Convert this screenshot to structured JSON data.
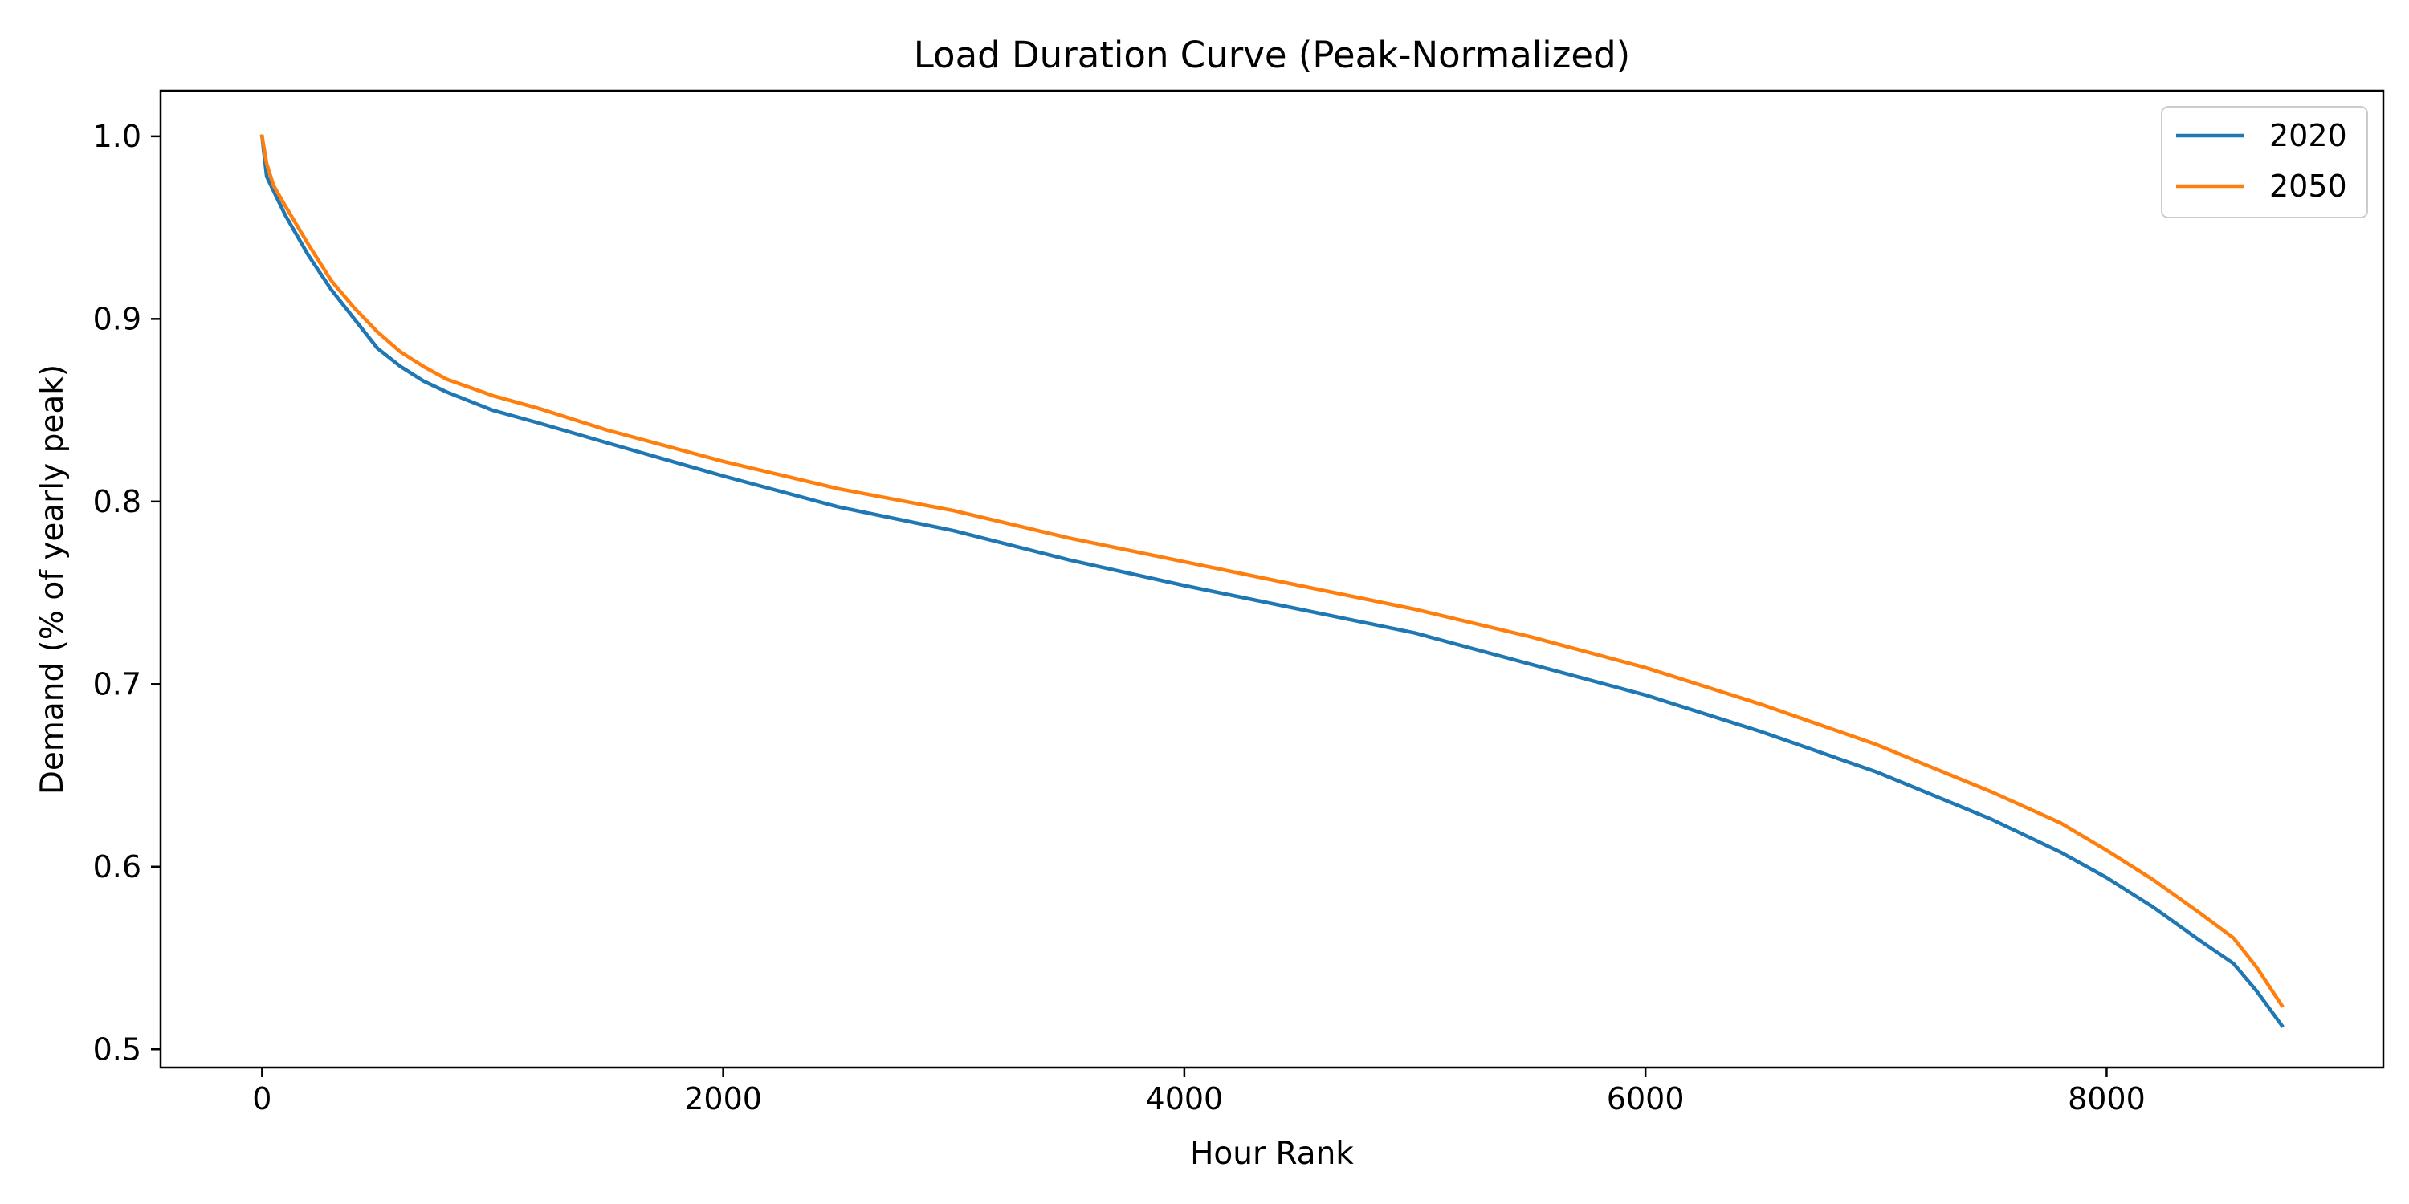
{
  "chart_data": {
    "type": "line",
    "title": "Load Duration Curve (Peak-Normalized)",
    "xlabel": "Hour Rank",
    "ylabel": "Demand (% of yearly peak)",
    "xlim": [
      -440,
      9200
    ],
    "ylim": [
      0.49,
      1.025
    ],
    "xticks": [
      0,
      2000,
      4000,
      6000,
      8000
    ],
    "xtick_labels": [
      "0",
      "2000",
      "4000",
      "6000",
      "8000"
    ],
    "yticks": [
      0.5,
      0.6,
      0.7,
      0.8,
      0.9,
      1.0
    ],
    "ytick_labels": [
      "0.5",
      "0.6",
      "0.7",
      "0.8",
      "0.9",
      "1.0"
    ],
    "grid": false,
    "legend": "top-right",
    "series": [
      {
        "name": "2020",
        "color": "#1f77b4",
        "x": [
          0,
          20,
          50,
          100,
          200,
          300,
          400,
          500,
          600,
          700,
          800,
          1000,
          1200,
          1500,
          2000,
          2500,
          3000,
          3500,
          4000,
          4500,
          5000,
          5500,
          6000,
          6500,
          7000,
          7500,
          7800,
          8000,
          8200,
          8400,
          8550,
          8650,
          8760
        ],
        "y": [
          1.0,
          0.978,
          0.97,
          0.957,
          0.935,
          0.916,
          0.9,
          0.884,
          0.874,
          0.866,
          0.86,
          0.85,
          0.843,
          0.832,
          0.814,
          0.797,
          0.784,
          0.768,
          0.754,
          0.741,
          0.728,
          0.711,
          0.694,
          0.674,
          0.652,
          0.626,
          0.608,
          0.594,
          0.578,
          0.56,
          0.547,
          0.532,
          0.513
        ]
      },
      {
        "name": "2050",
        "color": "#ff7f0e",
        "x": [
          0,
          20,
          50,
          100,
          200,
          300,
          400,
          500,
          600,
          700,
          800,
          1000,
          1200,
          1500,
          2000,
          2500,
          3000,
          3500,
          4000,
          4500,
          5000,
          5500,
          6000,
          6500,
          7000,
          7500,
          7800,
          8000,
          8200,
          8400,
          8550,
          8650,
          8760
        ],
        "y": [
          1.0,
          0.985,
          0.973,
          0.962,
          0.941,
          0.921,
          0.906,
          0.893,
          0.882,
          0.874,
          0.867,
          0.858,
          0.851,
          0.839,
          0.822,
          0.807,
          0.795,
          0.78,
          0.767,
          0.754,
          0.741,
          0.726,
          0.709,
          0.689,
          0.667,
          0.641,
          0.624,
          0.609,
          0.593,
          0.575,
          0.561,
          0.545,
          0.524
        ]
      }
    ]
  }
}
